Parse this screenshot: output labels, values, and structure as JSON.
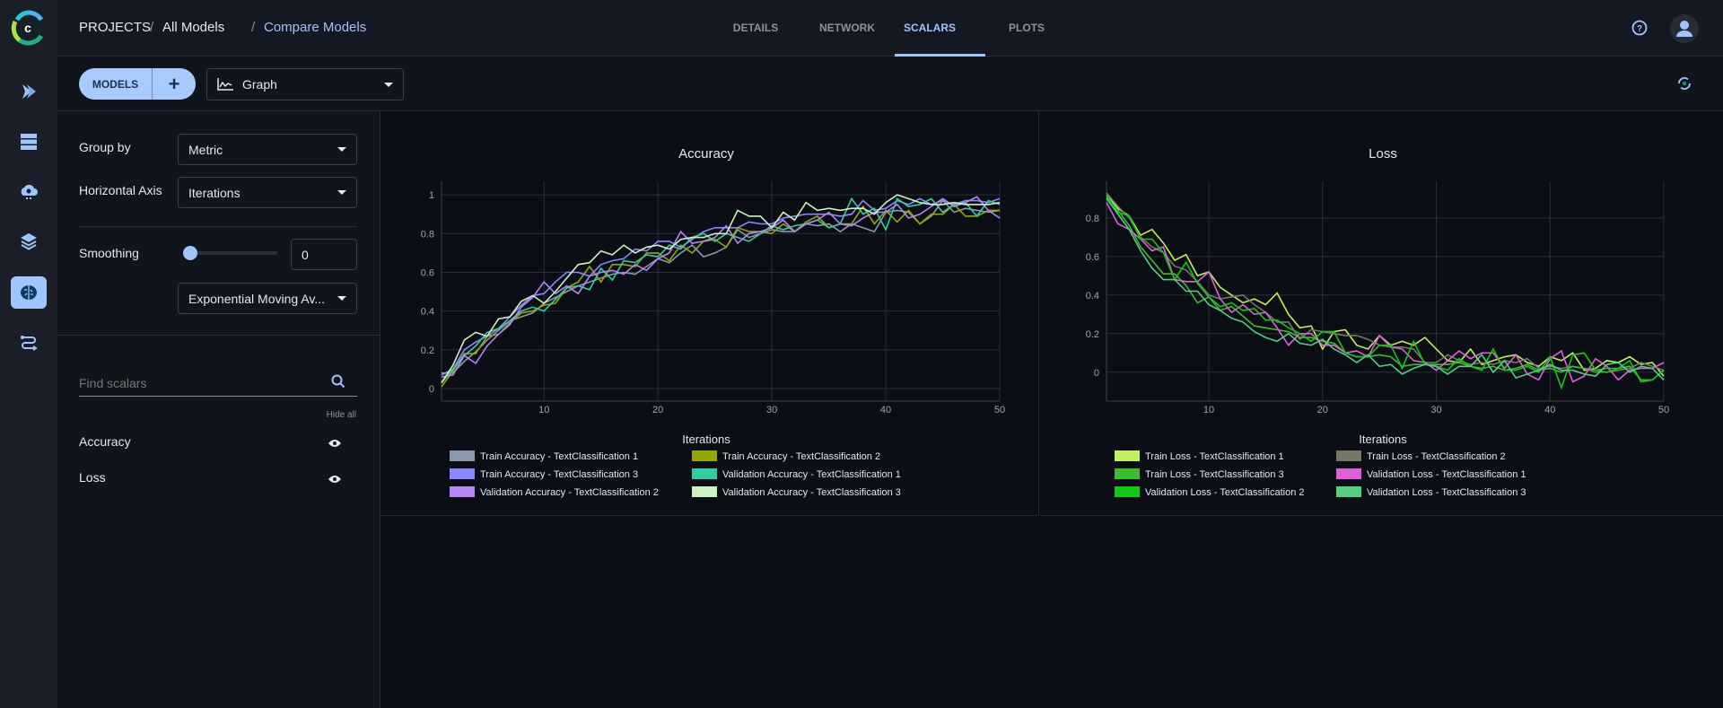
{
  "sidebar": {
    "items": [
      {
        "icon": "pipelines-icon"
      },
      {
        "icon": "datasets-icon"
      },
      {
        "icon": "orchestration-icon"
      },
      {
        "icon": "layers-icon"
      },
      {
        "icon": "models-brain-icon",
        "active": true
      },
      {
        "icon": "reports-icon"
      }
    ]
  },
  "header": {
    "breadcrumb": [
      "PROJECTS",
      "All Models",
      "Compare Models"
    ],
    "separator": "/",
    "tabs": [
      {
        "label": "DETAILS"
      },
      {
        "label": "NETWORK"
      },
      {
        "label": "SCALARS",
        "active": true
      },
      {
        "label": "PLOTS"
      }
    ]
  },
  "toolbar": {
    "models_label": "MODELS",
    "add_label": "+",
    "view_select": "Graph"
  },
  "settings": {
    "group_by_label": "Group by",
    "group_by_value": "Metric",
    "h_axis_label": "Horizontal Axis",
    "h_axis_value": "Iterations",
    "smoothing_label": "Smoothing",
    "smoothing_value": "0",
    "smoothing_fraction": 0,
    "smoothing_type": "Exponential Moving Av...",
    "search_placeholder": "Find scalars",
    "hide_all": "Hide all",
    "scalars": [
      {
        "label": "Accuracy",
        "visible": true
      },
      {
        "label": "Loss",
        "visible": true
      }
    ]
  },
  "colors": {
    "accent": "#9ec5fe"
  },
  "chart_data": [
    {
      "type": "line",
      "title": "Accuracy",
      "xlabel": "Iterations",
      "xlim": [
        1,
        50
      ],
      "ylim": [
        -0.065,
        1.07
      ],
      "xticks": [
        10,
        20,
        30,
        40,
        50
      ],
      "yticks": [
        0,
        0.2,
        0.4,
        0.6,
        0.8,
        1
      ],
      "ytick_labels": [
        "0",
        "0.2",
        "0.4",
        "0.6",
        "0.8",
        "1"
      ],
      "grid": true,
      "legend_position": "bottom",
      "series": [
        {
          "name": "Train Accuracy - TextClassification 1",
          "color": "#8a9aaa",
          "values": [
            0.08,
            0.08,
            0.14,
            0.19,
            0.25,
            0.3,
            0.35,
            0.37,
            0.39,
            0.44,
            0.47,
            0.5,
            0.53,
            0.55,
            0.57,
            0.59,
            0.6,
            0.59,
            0.63,
            0.67,
            0.65,
            0.7,
            0.74,
            0.68,
            0.7,
            0.73,
            0.82,
            0.78,
            0.8,
            0.82,
            0.81,
            0.81,
            0.85,
            0.84,
            0.85,
            0.81,
            0.85,
            0.83,
            0.81,
            0.91,
            0.92,
            0.91,
            0.85,
            0.89,
            0.97,
            0.91,
            0.93,
            0.92,
            0.91,
            0.92
          ]
        },
        {
          "name": "Train Accuracy - TextClassification 2",
          "color": "#93a800",
          "values": [
            0.01,
            0.09,
            0.18,
            0.18,
            0.27,
            0.28,
            0.34,
            0.39,
            0.4,
            0.43,
            0.44,
            0.52,
            0.55,
            0.63,
            0.55,
            0.64,
            0.64,
            0.63,
            0.7,
            0.7,
            0.66,
            0.74,
            0.7,
            0.76,
            0.77,
            0.73,
            0.83,
            0.81,
            0.81,
            0.8,
            0.85,
            0.81,
            0.86,
            0.89,
            0.83,
            0.85,
            0.85,
            0.94,
            0.85,
            0.92,
            0.86,
            0.92,
            0.85,
            0.9,
            0.9,
            0.95,
            0.89,
            0.89,
            0.92,
            0.92
          ]
        },
        {
          "name": "Train Accuracy - TextClassification 3",
          "color": "#8a88ff",
          "values": [
            0.07,
            0.1,
            0.2,
            0.24,
            0.27,
            0.31,
            0.37,
            0.43,
            0.48,
            0.49,
            0.55,
            0.6,
            0.6,
            0.58,
            0.64,
            0.66,
            0.67,
            0.72,
            0.71,
            0.76,
            0.76,
            0.73,
            0.77,
            0.81,
            0.83,
            0.83,
            0.83,
            0.86,
            0.85,
            0.85,
            0.88,
            0.89,
            0.9,
            0.9,
            0.9,
            0.89,
            0.9,
            0.97,
            0.92,
            0.93,
            0.97,
            0.95,
            0.98,
            0.95,
            0.97,
            0.95,
            0.97,
            0.97,
            0.96,
            0.98
          ]
        },
        {
          "name": "Validation Accuracy - TextClassification 1",
          "color": "#2ecfa0",
          "values": [
            0.03,
            0.1,
            0.17,
            0.22,
            0.29,
            0.31,
            0.35,
            0.4,
            0.42,
            0.4,
            0.46,
            0.52,
            0.53,
            0.51,
            0.62,
            0.56,
            0.66,
            0.65,
            0.69,
            0.68,
            0.74,
            0.72,
            0.78,
            0.8,
            0.76,
            0.8,
            0.78,
            0.76,
            0.8,
            0.84,
            0.82,
            0.84,
            0.85,
            0.87,
            0.83,
            0.85,
            0.98,
            0.9,
            0.93,
            0.82,
            0.98,
            0.94,
            0.95,
            0.98,
            0.91,
            0.95,
            0.96,
            0.89,
            0.97,
            0.95
          ]
        },
        {
          "name": "Validation Accuracy - TextClassification 2",
          "color": "#b585f5",
          "values": [
            0.06,
            0.07,
            0.17,
            0.13,
            0.22,
            0.28,
            0.33,
            0.42,
            0.47,
            0.55,
            0.49,
            0.53,
            0.49,
            0.58,
            0.6,
            0.61,
            0.59,
            0.64,
            0.61,
            0.67,
            0.7,
            0.81,
            0.75,
            0.76,
            0.78,
            0.84,
            0.75,
            0.8,
            0.81,
            0.83,
            0.87,
            0.81,
            0.85,
            0.87,
            0.91,
            0.85,
            0.84,
            0.88,
            0.91,
            0.91,
            0.95,
            0.88,
            0.9,
            0.94,
            0.98,
            0.94,
            0.96,
            0.99,
            0.92,
            0.88
          ]
        },
        {
          "name": "Validation Accuracy - TextClassification 3",
          "color": "#ccf2c0",
          "values": [
            0.03,
            0.12,
            0.25,
            0.29,
            0.27,
            0.36,
            0.37,
            0.45,
            0.48,
            0.44,
            0.5,
            0.57,
            0.64,
            0.65,
            0.71,
            0.69,
            0.74,
            0.7,
            0.73,
            0.74,
            0.72,
            0.77,
            0.78,
            0.78,
            0.8,
            0.8,
            0.92,
            0.89,
            0.89,
            0.83,
            0.91,
            0.87,
            0.96,
            0.92,
            0.93,
            0.92,
            0.93,
            0.93,
            0.9,
            0.96,
            1.0,
            0.98,
            0.96,
            0.95,
            0.95,
            0.96,
            0.95,
            0.95,
            0.95,
            0.96
          ]
        }
      ]
    },
    {
      "type": "line",
      "title": "Loss",
      "xlabel": "Iterations",
      "xlim": [
        1,
        50
      ],
      "ylim": [
        -0.15,
        0.99
      ],
      "xticks": [
        10,
        20,
        30,
        40,
        50
      ],
      "yticks": [
        0,
        0.2,
        0.4,
        0.6,
        0.8
      ],
      "ytick_labels": [
        "0",
        "0.2",
        "0.4",
        "0.6",
        "0.8"
      ],
      "grid": true,
      "legend_position": "bottom",
      "series": [
        {
          "name": "Train Loss - TextClassification 1",
          "color": "#c0f060",
          "values": [
            0.92,
            0.85,
            0.81,
            0.71,
            0.74,
            0.67,
            0.58,
            0.61,
            0.5,
            0.52,
            0.44,
            0.4,
            0.36,
            0.38,
            0.35,
            0.41,
            0.3,
            0.23,
            0.24,
            0.12,
            0.21,
            0.22,
            0.14,
            0.12,
            0.19,
            0.14,
            0.16,
            0.14,
            0.18,
            0.12,
            0.06,
            0.05,
            0.12,
            0.04,
            0.06,
            0.08,
            0.09,
            0.05,
            0.03,
            0.08,
            0.06,
            0.1,
            0.01,
            0.02,
            0.06,
            0.05,
            0.08,
            0.04,
            0.05,
            -0.02
          ]
        },
        {
          "name": "Train Loss - TextClassification 2",
          "color": "#767866",
          "values": [
            0.93,
            0.86,
            0.8,
            0.7,
            0.65,
            0.62,
            0.55,
            0.53,
            0.47,
            0.4,
            0.38,
            0.39,
            0.4,
            0.35,
            0.31,
            0.26,
            0.26,
            0.17,
            0.22,
            0.21,
            0.2,
            0.19,
            0.19,
            0.17,
            0.14,
            0.13,
            0.13,
            0.12,
            0.05,
            0.05,
            0.09,
            0.06,
            0.04,
            0.05,
            0.04,
            0.06,
            0.05,
            0.07,
            0.02,
            0.03,
            0.02,
            0.03,
            0.02,
            0.0,
            0.0,
            0.01,
            0.02,
            0.05,
            0.03,
            0.01
          ]
        },
        {
          "name": "Train Loss - TextClassification 3",
          "color": "#3cbe2c",
          "values": [
            0.91,
            0.84,
            0.76,
            0.65,
            0.58,
            0.51,
            0.51,
            0.45,
            0.36,
            0.39,
            0.32,
            0.34,
            0.29,
            0.24,
            0.23,
            0.22,
            0.21,
            0.18,
            0.18,
            0.16,
            0.15,
            0.1,
            0.08,
            0.08,
            0.09,
            0.08,
            0.03,
            0.04,
            0.04,
            0.04,
            0.04,
            0.05,
            0.03,
            0.02,
            0.03,
            0.01,
            0.02,
            0.04,
            0.01,
            0.02,
            0.0,
            0.03,
            0.02,
            0.01,
            0.02,
            0.02,
            0.03,
            -0.04,
            -0.04,
            0.01
          ]
        },
        {
          "name": "Validation Loss - TextClassification 1",
          "color": "#e060d8",
          "values": [
            0.88,
            0.77,
            0.74,
            0.69,
            0.63,
            0.65,
            0.48,
            0.47,
            0.47,
            0.52,
            0.38,
            0.31,
            0.35,
            0.3,
            0.31,
            0.23,
            0.14,
            0.2,
            0.2,
            0.14,
            0.14,
            0.1,
            0.11,
            0.08,
            0.19,
            0.13,
            0.12,
            0.06,
            0.05,
            0.01,
            0.06,
            0.11,
            0.07,
            0.1,
            0.1,
            0.02,
            0.09,
            -0.01,
            -0.04,
            0.07,
            0.11,
            -0.05,
            -0.02,
            0.07,
            0.03,
            -0.04,
            0.01,
            0.02,
            0.02,
            0.05
          ]
        },
        {
          "name": "Validation Loss - TextClassification 2",
          "color": "#12c812",
          "values": [
            0.92,
            0.83,
            0.81,
            0.69,
            0.69,
            0.62,
            0.48,
            0.57,
            0.46,
            0.39,
            0.34,
            0.36,
            0.32,
            0.33,
            0.27,
            0.27,
            0.23,
            0.2,
            0.16,
            0.21,
            0.21,
            0.1,
            0.08,
            0.08,
            0.14,
            0.14,
            0.02,
            0.16,
            0.04,
            0.03,
            0.01,
            0.07,
            0.03,
            0.01,
            0.12,
            0.01,
            0.01,
            0.03,
            0.0,
            0.08,
            -0.08,
            0.09,
            0.1,
            0.01,
            0.0,
            0.02,
            0.06,
            -0.05,
            -0.04,
            0.01
          ]
        },
        {
          "name": "Validation Loss - TextClassification 3",
          "color": "#50d080",
          "values": [
            0.9,
            0.82,
            0.74,
            0.63,
            0.54,
            0.48,
            0.48,
            0.42,
            0.42,
            0.35,
            0.32,
            0.28,
            0.26,
            0.21,
            0.18,
            0.16,
            0.2,
            0.15,
            0.14,
            0.17,
            0.12,
            0.09,
            0.05,
            0.09,
            0.03,
            0.04,
            -0.01,
            0.02,
            0.04,
            0.03,
            -0.01,
            0.03,
            0.03,
            0.09,
            0.0,
            0.06,
            -0.03,
            -0.01,
            0.01,
            0.04,
            0.01,
            0.01,
            -0.01,
            -0.02,
            0.04,
            0.05,
            0.0,
            0.03,
            0.02,
            -0.04
          ]
        }
      ]
    }
  ]
}
